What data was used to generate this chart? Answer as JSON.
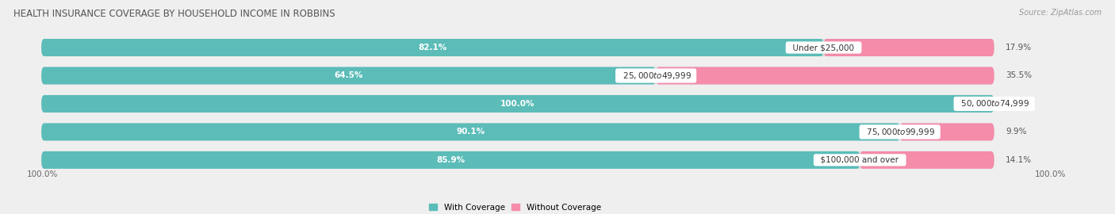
{
  "title": "HEALTH INSURANCE COVERAGE BY HOUSEHOLD INCOME IN ROBBINS",
  "source": "Source: ZipAtlas.com",
  "categories": [
    "Under $25,000",
    "$25,000 to $49,999",
    "$50,000 to $74,999",
    "$75,000 to $99,999",
    "$100,000 and over"
  ],
  "with_coverage": [
    82.1,
    64.5,
    100.0,
    90.1,
    85.9
  ],
  "without_coverage": [
    17.9,
    35.5,
    0.0,
    9.9,
    14.1
  ],
  "color_with": "#5bbcb8",
  "color_without": "#f48caa",
  "color_without_light": "#f8bbd0",
  "background_color": "#efefef",
  "bar_background": "#e8e8e8",
  "bar_height": 0.62,
  "x_left_label": "100.0%",
  "x_right_label": "100.0%",
  "legend_with": "With Coverage",
  "legend_without": "Without Coverage"
}
